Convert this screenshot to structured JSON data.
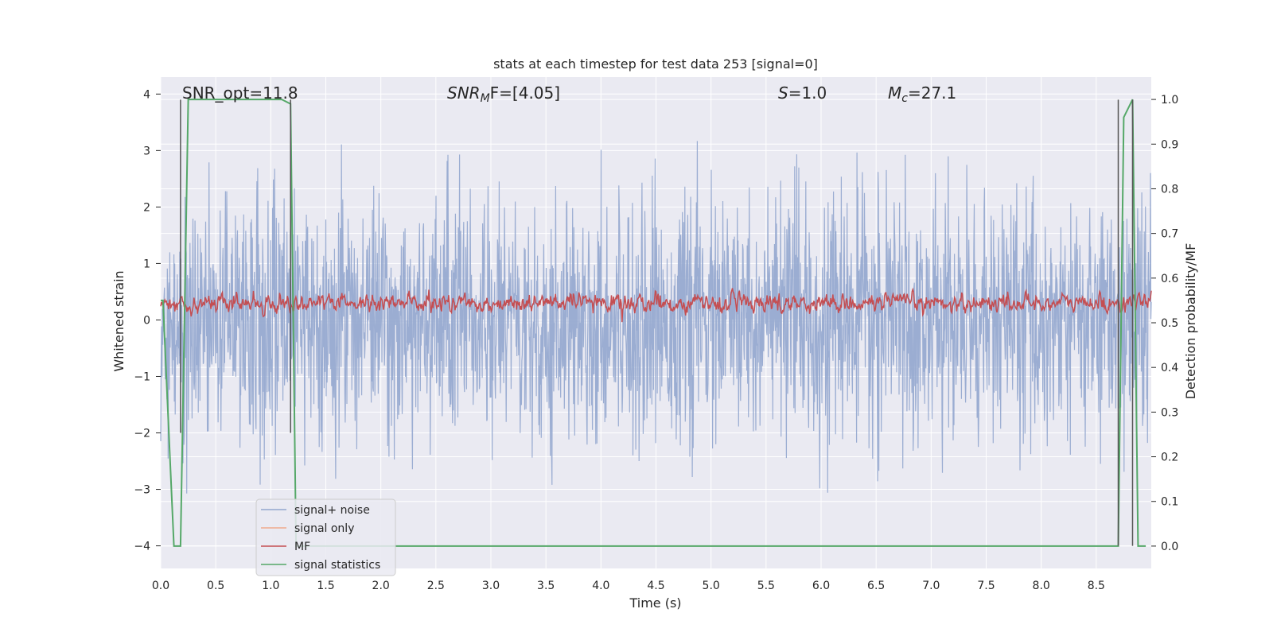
{
  "chart_data": {
    "type": "line",
    "title": "stats at each timestep for test data 253 [signal=0]",
    "xlabel": "Time (s)",
    "ylabel_left": "Whitened strain",
    "ylabel_right": "Detection probability/MF",
    "xlim": [
      0.0,
      9.0
    ],
    "ylim_left": [
      -4.4,
      4.3
    ],
    "ylim_right": [
      -0.05,
      1.05
    ],
    "grid": true,
    "x_ticks": [
      "0.0",
      "0.5",
      "1.0",
      "1.5",
      "2.0",
      "2.5",
      "3.0",
      "3.5",
      "4.0",
      "4.5",
      "5.0",
      "5.5",
      "6.0",
      "6.5",
      "7.0",
      "7.5",
      "8.0",
      "8.5"
    ],
    "left_ticks": [
      "−4",
      "−3",
      "−2",
      "−1",
      "0",
      "1",
      "2",
      "3",
      "4"
    ],
    "right_ticks": [
      "0.0",
      "0.1",
      "0.2",
      "0.3",
      "0.4",
      "0.5",
      "0.6",
      "0.7",
      "0.8",
      "0.9",
      "1.0"
    ],
    "legend_position": "lower-left",
    "annotations": {
      "snr_opt": "SNR_opt=11.8",
      "snr_mf": "SNR",
      "snr_mf_sub": "M",
      "snr_mf_rest": "F=[4.05]",
      "s_var": "S",
      "s_rest": "=1.0",
      "mc_var": "M",
      "mc_sub": "c",
      "mc_rest": "=27.1"
    },
    "series": [
      {
        "name": "signal+ noise",
        "color": "#92a6ce",
        "axis": "left",
        "description_values": {
          "range": [
            -4.0,
            3.9
          ],
          "typical_envelope": [
            -2.0,
            2.2
          ]
        }
      },
      {
        "name": "signal only",
        "color": "#f0a98c",
        "axis": "left",
        "values": []
      },
      {
        "name": "MF",
        "color": "#c44e52",
        "axis": "left",
        "description_values": {
          "range": [
            -0.05,
            1.0
          ],
          "typical_envelope": [
            0.05,
            0.6
          ]
        }
      },
      {
        "name": "signal statistics",
        "color": "#55a868",
        "axis": "right",
        "x": [
          0.0,
          0.02,
          0.12,
          0.18,
          0.25,
          0.3,
          0.5,
          0.7,
          0.9,
          1.1,
          1.18,
          1.23,
          1.3,
          2.0,
          3.0,
          4.0,
          5.0,
          6.0,
          7.0,
          8.0,
          8.5,
          8.7,
          8.75,
          8.83,
          8.88,
          8.95
        ],
        "y": [
          0.55,
          0.55,
          0.0,
          0.0,
          1.0,
          1.0,
          1.0,
          1.0,
          1.0,
          1.0,
          0.99,
          0.0,
          0.0,
          0.0,
          0.0,
          0.0,
          0.0,
          0.0,
          0.0,
          0.0,
          0.0,
          0.0,
          0.96,
          1.0,
          0.0,
          0.0
        ]
      }
    ],
    "vertical_lines": {
      "color": "#555555",
      "x": [
        0.18,
        1.18,
        8.7,
        8.83
      ],
      "y_top": 3.9,
      "y_bottom": [
        -2.0,
        -2.0,
        -4.0,
        -4.0
      ]
    }
  }
}
